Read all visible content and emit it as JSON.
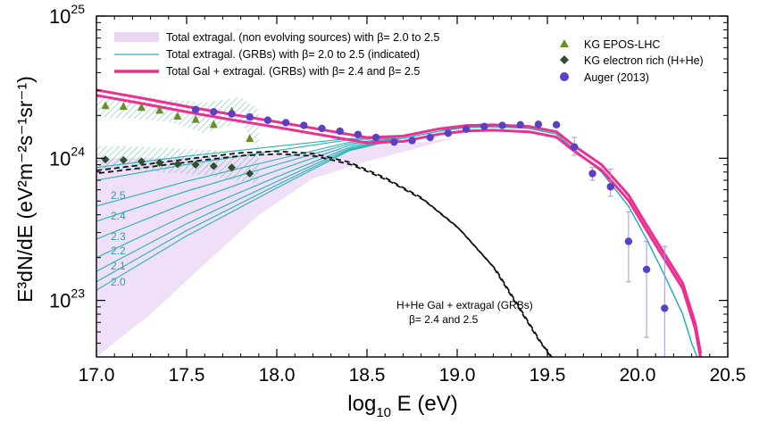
{
  "chart_data": {
    "type": "line",
    "xlabel_main": "log",
    "xlabel_sub": "10",
    "xlabel_rest": " E (eV)",
    "ylabel": "E³dN/dE (eV²m⁻²s⁻¹sr⁻¹)",
    "x_ticks": [
      "17.0",
      "17.5",
      "18.0",
      "18.5",
      "19.0",
      "19.5",
      "20.0",
      "20.5"
    ],
    "x_tick_values": [
      17.0,
      17.5,
      18.0,
      18.5,
      19.0,
      19.5,
      20.0,
      20.5
    ],
    "y_ticks": [
      {
        "base": "10",
        "exp": "23",
        "value": 1e+23
      },
      {
        "base": "10",
        "exp": "24",
        "value": 1e+24
      },
      {
        "base": "10",
        "exp": "25",
        "value": 1e+25
      }
    ],
    "xlim": [
      17.0,
      20.5
    ],
    "ylim": [
      4e+22,
      1e+25
    ],
    "yscale": "log",
    "legend_left": [
      {
        "label": "Total extragal. (non evolving sources) with β= 2.0 to 2.5",
        "style": "band",
        "color": "#e9d6f4"
      },
      {
        "label": "Total extragal. (GRBs) with β= 2.0 to 2.5 (indicated)",
        "style": "thin-line",
        "color": "#29b3b8"
      },
      {
        "label": "Total Gal + extragal. (GRBs) with β= 2.4 and β= 2.5",
        "style": "thick-line",
        "color": "#ec2f90"
      }
    ],
    "legend_right": [
      {
        "label": "KG EPOS-LHC",
        "marker": "triangle",
        "color": "#6b8e23"
      },
      {
        "label": "KG electron rich (H+He)",
        "marker": "diamond",
        "color": "#2f4f2f"
      },
      {
        "label": "Auger (2013)",
        "marker": "circle",
        "color": "#5b3fc7"
      }
    ],
    "beta_labels": [
      "2.5",
      "2.4",
      "2.3",
      "2.2",
      "2.1",
      "2.0"
    ],
    "annotation_line1": "H+He Gal + extragal (GRBs)",
    "annotation_line2": "β= 2.4 and 2.5",
    "series": {
      "auger": {
        "x": [
          17.55,
          17.65,
          17.75,
          17.85,
          17.95,
          18.05,
          18.15,
          18.25,
          18.35,
          18.45,
          18.55,
          18.65,
          18.75,
          18.85,
          18.95,
          19.05,
          19.15,
          19.25,
          19.35,
          19.45,
          19.55,
          19.65,
          19.75,
          19.85,
          19.95,
          20.05,
          20.15
        ],
        "y": [
          2.2e+24,
          2.12e+24,
          2.05e+24,
          1.95e+24,
          1.85e+24,
          1.78e+24,
          1.7e+24,
          1.62e+24,
          1.55e+24,
          1.47e+24,
          1.4e+24,
          1.3e+24,
          1.33e+24,
          1.4e+24,
          1.5e+24,
          1.6e+24,
          1.67e+24,
          1.7e+24,
          1.72e+24,
          1.73e+24,
          1.72e+24,
          1.2e+24,
          7.8e+23,
          6.3e+23,
          2.6e+23,
          1.65e+23,
          8.8e+22
        ],
        "yerr_lo": [
          0,
          0,
          0,
          0,
          0,
          0,
          0,
          0,
          0,
          0,
          0,
          0,
          0,
          0,
          0,
          0,
          0,
          0,
          0,
          0,
          0,
          1.05e+24,
          7e+23,
          5.4e+23,
          1.35e+23,
          5.5e+22,
          4e+22
        ],
        "yerr_hi": [
          0,
          0,
          0,
          0,
          0,
          0,
          0,
          0,
          0,
          0,
          0,
          0,
          0,
          0,
          0,
          0,
          0,
          0,
          0,
          0,
          0,
          1.4e+24,
          8.6e+23,
          8.4e+23,
          4.2e+23,
          2.6e+23,
          2.4e+23
        ]
      },
      "kg_epos": {
        "x": [
          17.05,
          17.15,
          17.25,
          17.35,
          17.45,
          17.55,
          17.65,
          17.75,
          17.85
        ],
        "y": [
          2.35e+24,
          2.32e+24,
          2.28e+24,
          2.18e+24,
          1.98e+24,
          1.88e+24,
          1.73e+24,
          2.15e+24,
          1.38e+24
        ]
      },
      "kg_erich": {
        "x": [
          17.05,
          17.15,
          17.25,
          17.35,
          17.45,
          17.55,
          17.65,
          17.75,
          17.85
        ],
        "y": [
          9.8e+23,
          9.7e+23,
          9.5e+23,
          9.3e+23,
          9.1e+23,
          9e+23,
          8.8e+23,
          8.6e+23,
          7.8e+23
        ]
      },
      "gal_plus_extragal_thick": {
        "x": [
          17.0,
          17.25,
          17.5,
          17.75,
          18.0,
          18.25,
          18.5,
          18.7,
          18.9,
          19.05,
          19.2,
          19.4,
          19.55,
          19.65,
          19.8,
          19.95,
          20.05,
          20.15,
          20.25,
          20.32,
          20.35
        ],
        "y": [
          2.85e+24,
          2.5e+24,
          2.18e+24,
          1.92e+24,
          1.7e+24,
          1.5e+24,
          1.32e+24,
          1.35e+24,
          1.52e+24,
          1.6e+24,
          1.62e+24,
          1.58e+24,
          1.45e+24,
          1.15e+24,
          8.5e+23,
          5.2e+23,
          3.2e+23,
          2e+23,
          1.25e+23,
          6.5e+22,
          4e+22
        ]
      },
      "hh_galactic_dashed": {
        "x": [
          17.0,
          17.2,
          17.4,
          17.6,
          17.8,
          18.0,
          18.2,
          18.4,
          18.6,
          18.8,
          19.0,
          19.2,
          19.35,
          19.45,
          19.52
        ],
        "y": [
          8.2e+23,
          8.8e+23,
          9.5e+23,
          1.02e+24,
          1.09e+24,
          1.12e+24,
          1.08e+24,
          9.4e+23,
          7.3e+23,
          5.3e+23,
          3.3e+23,
          1.72e+23,
          8.5e+22,
          5.3e+22,
          4e+22
        ]
      }
    }
  }
}
